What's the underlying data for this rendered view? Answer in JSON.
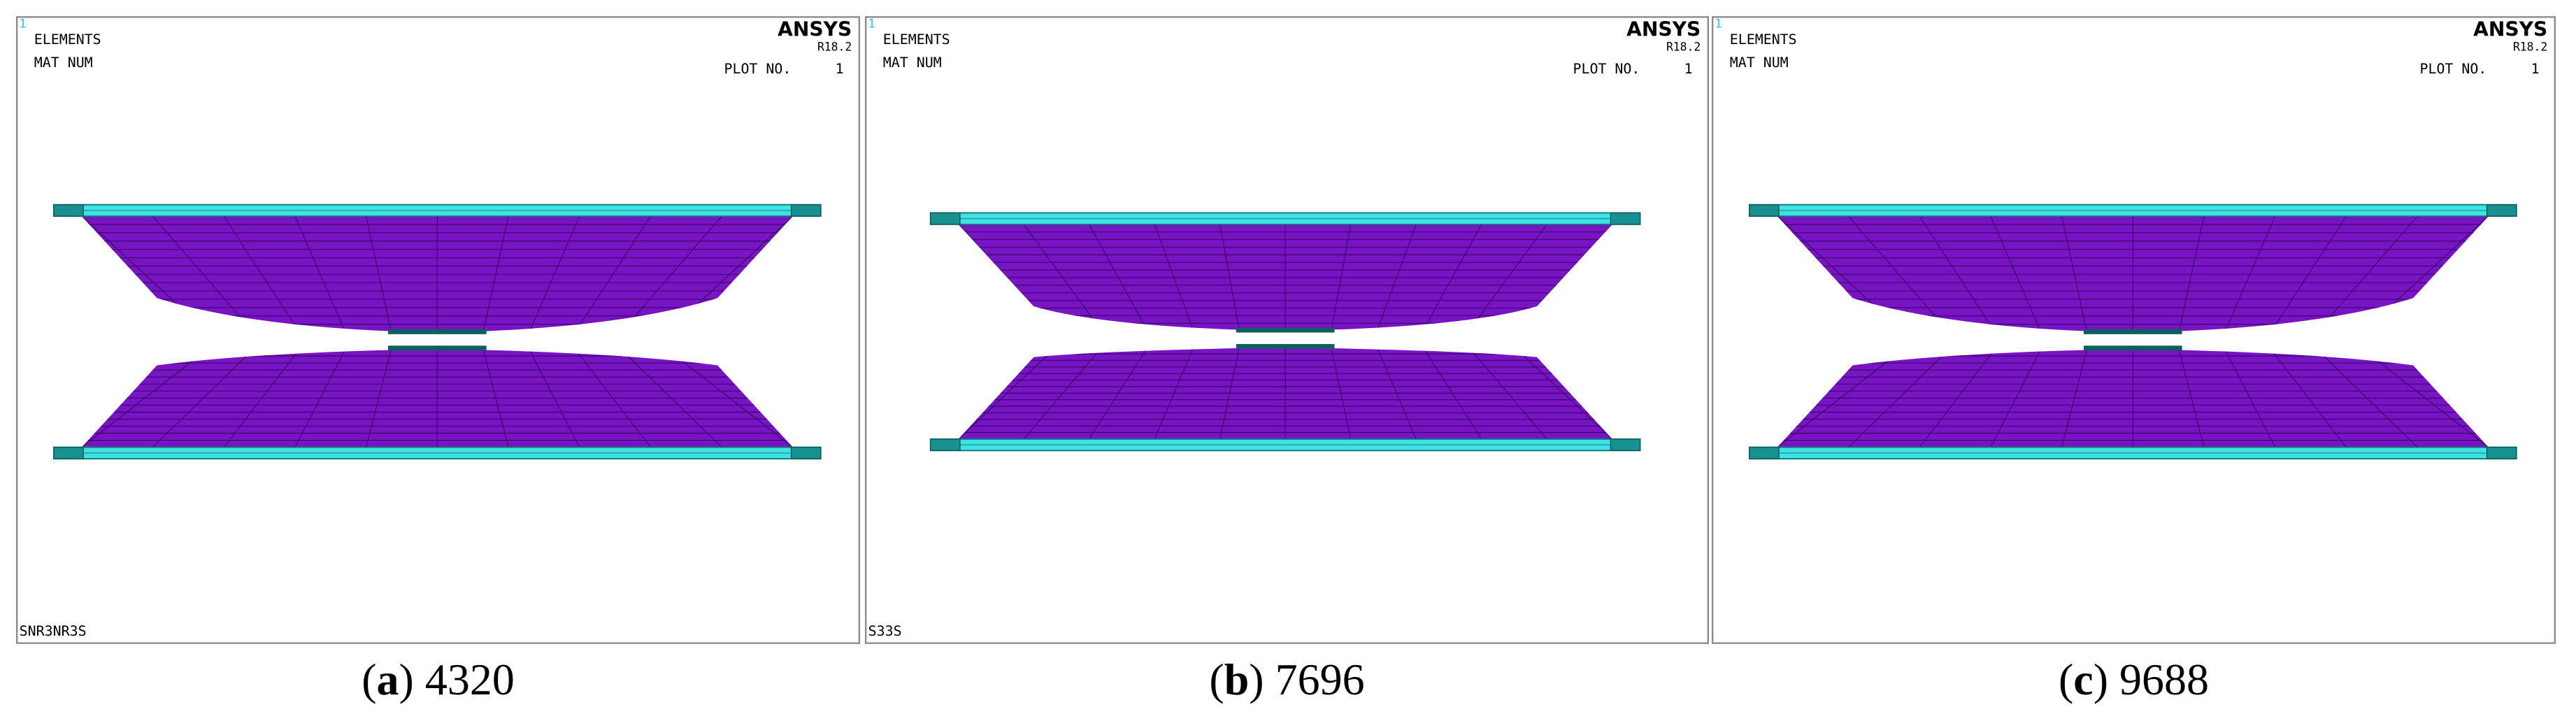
{
  "panels": [
    {
      "corner_id": "1",
      "title": "ELEMENTS",
      "subtitle": "MAT  NUM",
      "brand": "ANSYS",
      "version": "R18.2",
      "plot_label": "PLOT NO.",
      "plot_number": "1",
      "footer": "SNR3NR3S",
      "caption": {
        "open": "(",
        "letter": "a",
        "close": ")",
        "value": "4320"
      }
    },
    {
      "corner_id": "1",
      "title": "ELEMENTS",
      "subtitle": "MAT  NUM",
      "brand": "ANSYS",
      "version": "R18.2",
      "plot_label": "PLOT NO.",
      "plot_number": "1",
      "footer": "S33S",
      "caption": {
        "open": "(",
        "letter": "b",
        "close": ")",
        "value": "7696"
      }
    },
    {
      "corner_id": "1",
      "title": "ELEMENTS",
      "subtitle": "MAT  NUM",
      "brand": "ANSYS",
      "version": "R18.2",
      "plot_label": "PLOT NO.",
      "plot_number": "1",
      "caption": {
        "open": "(",
        "letter": "c",
        "close": ")",
        "value": "9688"
      }
    }
  ]
}
